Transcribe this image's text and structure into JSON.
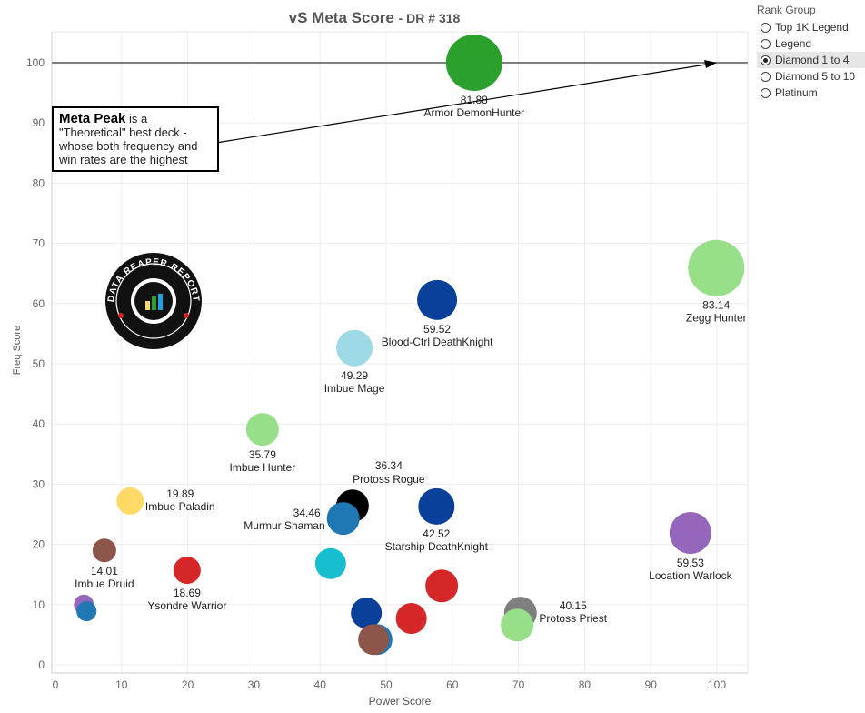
{
  "legend": {
    "title": "Rank Group",
    "items": [
      {
        "label": "Top 1K Legend",
        "selected": false
      },
      {
        "label": "Legend",
        "selected": false
      },
      {
        "label": "Diamond 1 to 4",
        "selected": true
      },
      {
        "label": "Diamond 5 to 10",
        "selected": false
      },
      {
        "label": "Platinum",
        "selected": false
      }
    ]
  },
  "annotation": {
    "bold": "Meta Peak",
    "text": " is a \"Theoretical\" best deck - whose both frequency and win rates are the highest"
  },
  "logo": {
    "text": "DATA REAPER REPORT",
    "subtext": "VICIOUS SYNDICATE PRESENTS"
  },
  "chart_data": {
    "type": "scatter",
    "title": "vS Meta Score",
    "subtitle": "- DR # 318",
    "xlabel": "Power Score",
    "ylabel": "Freq Score",
    "xlim": [
      0,
      105
    ],
    "ylim": [
      0,
      105
    ],
    "xticks": [
      0,
      10,
      20,
      30,
      40,
      50,
      60,
      70,
      80,
      90,
      100
    ],
    "yticks": [
      0,
      10,
      20,
      30,
      40,
      50,
      60,
      70,
      80,
      90,
      100
    ],
    "grid": true,
    "reference_line": {
      "y": 100
    },
    "arrow_target": {
      "x": 100,
      "y": 100
    },
    "points": [
      {
        "name": "Armor DemonHunter",
        "value": "81.88",
        "x": 63.3,
        "y": 100,
        "size": 31,
        "color": "#2ca02c",
        "label": "below"
      },
      {
        "name": "Zegg Hunter",
        "value": "83.14",
        "x": 99.9,
        "y": 65.9,
        "size": 31,
        "color": "#98df8a",
        "label": "below"
      },
      {
        "name": "Blood-Ctrl DeathKnight",
        "value": "59.52",
        "x": 57.7,
        "y": 60.6,
        "size": 22,
        "color": "#08409a",
        "label": "below"
      },
      {
        "name": "Imbue Mage",
        "value": "49.29",
        "x": 45.2,
        "y": 52.6,
        "size": 20,
        "color": "#9edae5",
        "label": "below"
      },
      {
        "name": "Imbue Hunter",
        "value": "35.79",
        "x": 31.3,
        "y": 39.1,
        "size": 18,
        "color": "#98df8a",
        "label": "below"
      },
      {
        "name": "Location Warlock",
        "value": "59.53",
        "x": 96.0,
        "y": 21.9,
        "size": 23,
        "color": "#9467bd",
        "label": "below"
      },
      {
        "name": "Protoss Rogue",
        "value": "36.34",
        "x": 44.9,
        "y": 26.4,
        "size": 18,
        "color": "#000000",
        "label": "above"
      },
      {
        "name": "Murmur Shaman",
        "value": "34.46",
        "x": 43.5,
        "y": 24.3,
        "size": 18,
        "color": "#1f77b4",
        "label": "left"
      },
      {
        "name": "Starship DeathKnight",
        "value": "42.52",
        "x": 57.6,
        "y": 26.3,
        "size": 20,
        "color": "#08409a",
        "label": "below"
      },
      {
        "name": "Imbue Paladin",
        "value": "19.89",
        "x": 11.3,
        "y": 27.2,
        "size": 15,
        "color": "#ffd966",
        "label": "right"
      },
      {
        "name": "Imbue Druid",
        "value": "14.01",
        "x": 7.4,
        "y": 19.0,
        "size": 13,
        "color": "#8c564b",
        "label": "below"
      },
      {
        "name": "Ysondre Warrior",
        "value": "18.69",
        "x": 19.9,
        "y": 15.7,
        "size": 15,
        "color": "#d62728",
        "label": "below"
      },
      {
        "name": "Protoss Priest",
        "value": "40.15",
        "x": 70.3,
        "y": 8.6,
        "size": 18,
        "color": "#7f7f7f",
        "label": "right"
      },
      {
        "name": "",
        "value": "",
        "x": 69.8,
        "y": 6.6,
        "size": 18,
        "color": "#98df8a",
        "label": "none"
      },
      {
        "name": "",
        "value": "",
        "x": 41.6,
        "y": 16.8,
        "size": 17,
        "color": "#17becf",
        "label": "none"
      },
      {
        "name": "",
        "value": "",
        "x": 58.4,
        "y": 13.1,
        "size": 18,
        "color": "#d62728",
        "label": "none"
      },
      {
        "name": "",
        "value": "",
        "x": 53.8,
        "y": 7.7,
        "size": 17,
        "color": "#d62728",
        "label": "none"
      },
      {
        "name": "",
        "value": "",
        "x": 47.0,
        "y": 8.6,
        "size": 17,
        "color": "#08409a",
        "label": "none"
      },
      {
        "name": "",
        "value": "",
        "x": 48.6,
        "y": 4.2,
        "size": 17,
        "color": "#1f77b4",
        "label": "none"
      },
      {
        "name": "",
        "value": "",
        "x": 48.1,
        "y": 4.2,
        "size": 17,
        "color": "#8c564b",
        "label": "none"
      },
      {
        "name": "",
        "value": "",
        "x": 4.3,
        "y": 10.0,
        "size": 11,
        "color": "#9467bd",
        "label": "none"
      },
      {
        "name": "",
        "value": "",
        "x": 4.7,
        "y": 8.9,
        "size": 11,
        "color": "#1f77b4",
        "label": "none"
      }
    ]
  }
}
